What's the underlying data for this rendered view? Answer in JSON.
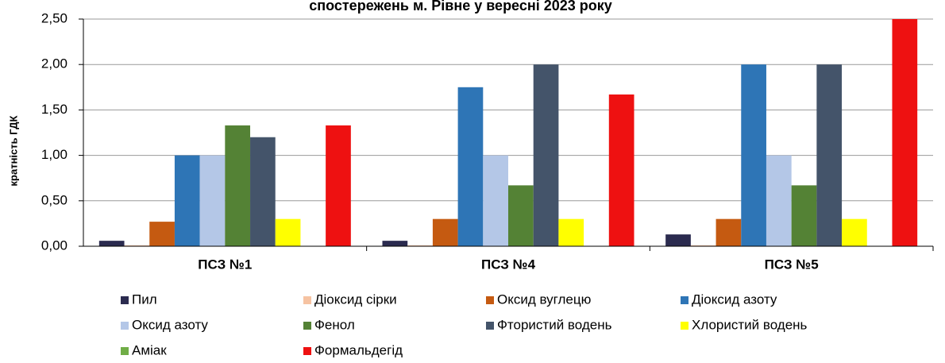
{
  "chart_data": {
    "type": "bar",
    "title": "спостережень м. Рівне у вересні 2023 року",
    "ylabel": "кратність  ГДК",
    "categories": [
      "ПСЗ №1",
      "ПСЗ №4",
      "ПСЗ №5"
    ],
    "series": [
      {
        "name": "Пил",
        "color": "#2b2b4f",
        "values": [
          0.06,
          0.06,
          0.13
        ]
      },
      {
        "name": "Діоксид сірки",
        "color": "#f6c3a2",
        "values": [
          0.01,
          0.01,
          0.01
        ]
      },
      {
        "name": "Оксид вуглецю",
        "color": "#c55a11",
        "values": [
          0.27,
          0.3,
          0.3
        ]
      },
      {
        "name": "Діоксид азоту",
        "color": "#2e75b6",
        "values": [
          1.0,
          1.75,
          2.0
        ]
      },
      {
        "name": "Оксид азоту",
        "color": "#b4c7e7",
        "values": [
          1.0,
          1.0,
          1.0
        ]
      },
      {
        "name": "Фенол",
        "color": "#548235",
        "values": [
          1.33,
          0.67,
          0.67
        ]
      },
      {
        "name": "Фтористий водень",
        "color": "#44546a",
        "values": [
          1.2,
          2.0,
          2.0
        ]
      },
      {
        "name": "Хлористий водень",
        "color": "#ffff00",
        "values": [
          0.3,
          0.3,
          0.3
        ]
      },
      {
        "name": "Аміак",
        "color": "#70ad47",
        "values": [
          0,
          0,
          0
        ]
      },
      {
        "name": "Формальдегід",
        "color": "#ee1111",
        "values": [
          1.33,
          1.67,
          2.5
        ]
      }
    ],
    "ylim": [
      0,
      2.5
    ],
    "yticks": [
      {
        "value": 0,
        "label": "0,00"
      },
      {
        "value": 0.5,
        "label": "0,50"
      },
      {
        "value": 1,
        "label": "1,00"
      },
      {
        "value": 1.5,
        "label": "1,50"
      },
      {
        "value": 2,
        "label": "2,00"
      },
      {
        "value": 2.5,
        "label": "2,50"
      }
    ],
    "grid": true
  }
}
